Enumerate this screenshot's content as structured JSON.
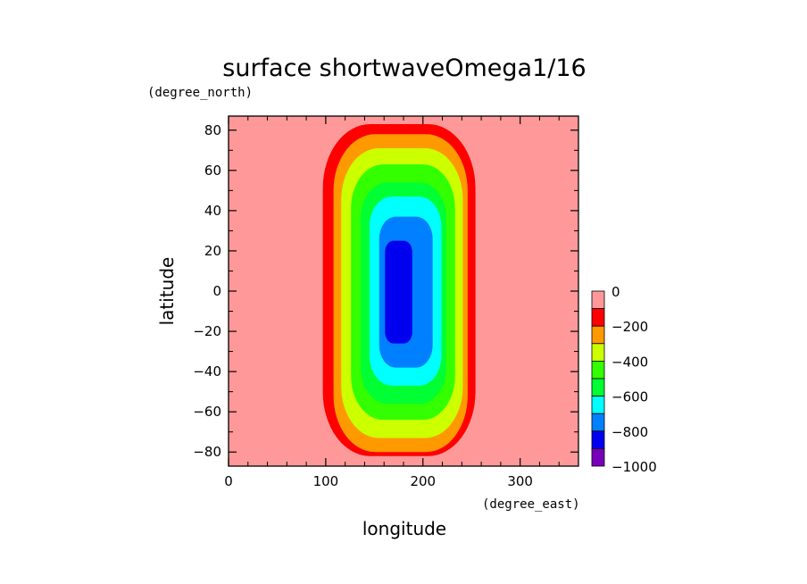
{
  "chart_data": {
    "type": "heatmap",
    "subtype": "filled-contour",
    "title": "surface shortwaveOmega1/16",
    "xlabel": "longitude",
    "ylabel": "latitude",
    "x_units": "(degree_east)",
    "y_units": "(degree_north)",
    "xlim": [
      0,
      360
    ],
    "ylim": [
      -87,
      87
    ],
    "x_ticks": [
      0,
      100,
      200,
      300
    ],
    "y_ticks": [
      80,
      60,
      40,
      20,
      0,
      -20,
      -40,
      -60,
      -80
    ],
    "x_tick_labels": [
      "0",
      "100",
      "200",
      "300"
    ],
    "y_tick_labels": [
      "80",
      "60",
      "40",
      "20",
      "0",
      "−20",
      "−40",
      "−60",
      "−80"
    ],
    "background_value": 0,
    "contour_levels": [
      {
        "range": [
          -200,
          -100
        ],
        "color": "#ff0000",
        "lon": [
          97,
          254
        ],
        "lat": [
          -82,
          83
        ]
      },
      {
        "range": [
          -300,
          -200
        ],
        "color": "#ff9900",
        "lon": [
          108,
          246
        ],
        "lat": [
          -80,
          78
        ]
      },
      {
        "range": [
          -400,
          -300
        ],
        "color": "#ccff00",
        "lon": [
          116,
          241
        ],
        "lat": [
          -73,
          71
        ]
      },
      {
        "range": [
          -500,
          -400
        ],
        "color": "#33ff00",
        "lon": [
          126,
          233
        ],
        "lat": [
          -64,
          63
        ]
      },
      {
        "range": [
          -600,
          -500
        ],
        "color": "#00ff33",
        "lon": [
          136,
          224
        ],
        "lat": [
          -56,
          54
        ]
      },
      {
        "range": [
          -700,
          -600
        ],
        "color": "#00ffff",
        "lon": [
          145,
          219
        ],
        "lat": [
          -47,
          47
        ]
      },
      {
        "range": [
          -800,
          -700
        ],
        "color": "#0080ff",
        "lon": [
          155,
          210
        ],
        "lat": [
          -38,
          37
        ]
      },
      {
        "range": [
          -900,
          -800
        ],
        "color": "#0000ee",
        "lon": [
          161,
          189
        ],
        "lat": [
          -26,
          25
        ]
      }
    ],
    "colorbar": {
      "bands": [
        {
          "color": "#ff9999"
        },
        {
          "color": "#ff0000"
        },
        {
          "color": "#ff9900"
        },
        {
          "color": "#ccff00"
        },
        {
          "color": "#33ff00"
        },
        {
          "color": "#00ff33"
        },
        {
          "color": "#00ffff"
        },
        {
          "color": "#0080ff"
        },
        {
          "color": "#0000ee"
        },
        {
          "color": "#7700bb"
        }
      ],
      "labels": [
        "0",
        "−200",
        "−400",
        "−600",
        "−800",
        "−1000"
      ]
    }
  }
}
